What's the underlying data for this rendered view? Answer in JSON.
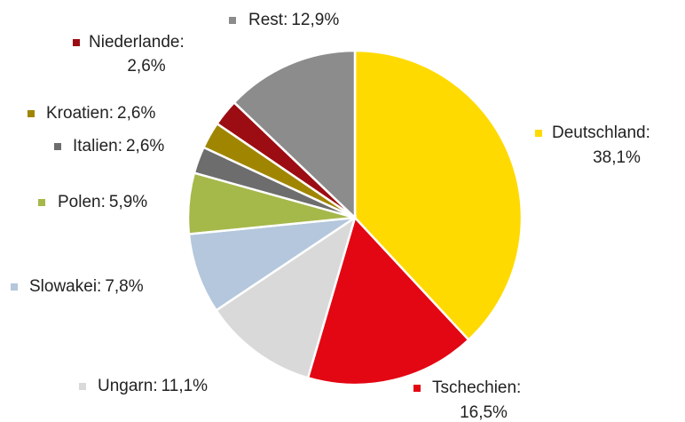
{
  "chart_data": {
    "type": "pie",
    "categories": [
      "Deutschland:",
      "Tschechien:",
      "Ungarn:",
      "Slowakei:",
      "Polen:",
      "Italien:",
      "Kroatien:",
      "Niederlande:",
      "Rest:"
    ],
    "values": [
      38.1,
      16.5,
      11.1,
      7.8,
      5.9,
      2.6,
      2.6,
      2.6,
      12.9
    ],
    "value_labels": [
      "38,1%",
      "16,5%",
      "11,1%",
      "7,8%",
      "5,9%",
      "2,6%",
      "2,6%",
      "2,6%",
      "12,9%"
    ],
    "colors": [
      "#ffda00",
      "#e30613",
      "#d9d9d9",
      "#b4c7dc",
      "#a5b84a",
      "#6d6d6d",
      "#a08600",
      "#9b0d13",
      "#8c8c8c"
    ]
  }
}
